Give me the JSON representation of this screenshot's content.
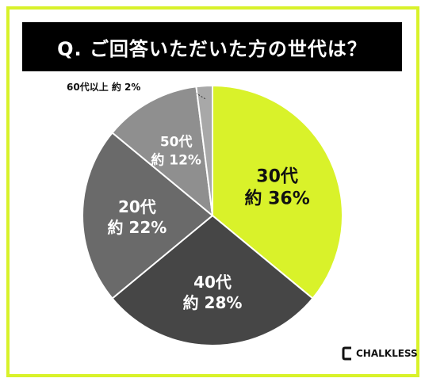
{
  "title": "Q. ご回答いただいた方の世代は？",
  "brand": "CHALKLESS",
  "colors": {
    "border": "#d9f22a",
    "title_bg": "#000000",
    "title_text": "#ffffff",
    "highlight": "#d9f22a"
  },
  "chart_data": {
    "type": "pie",
    "title": "Q. ご回答いただいた方の世代は？",
    "slices": [
      {
        "label": "30代",
        "value_label": "約 36%",
        "value": 36,
        "color": "#d9f22a",
        "text_color": "#111111"
      },
      {
        "label": "40代",
        "value_label": "約 28%",
        "value": 28,
        "color": "#464646",
        "text_color": "#ffffff"
      },
      {
        "label": "20代",
        "value_label": "約 22%",
        "value": 22,
        "color": "#6a6a6a",
        "text_color": "#ffffff"
      },
      {
        "label": "50代",
        "value_label": "約 12%",
        "value": 12,
        "color": "#8f8f8f",
        "text_color": "#ffffff"
      },
      {
        "label": "60代以上",
        "value_label": "約 2%",
        "value": 2,
        "color": "#a8a8a8",
        "text_color": "#111111"
      }
    ]
  }
}
